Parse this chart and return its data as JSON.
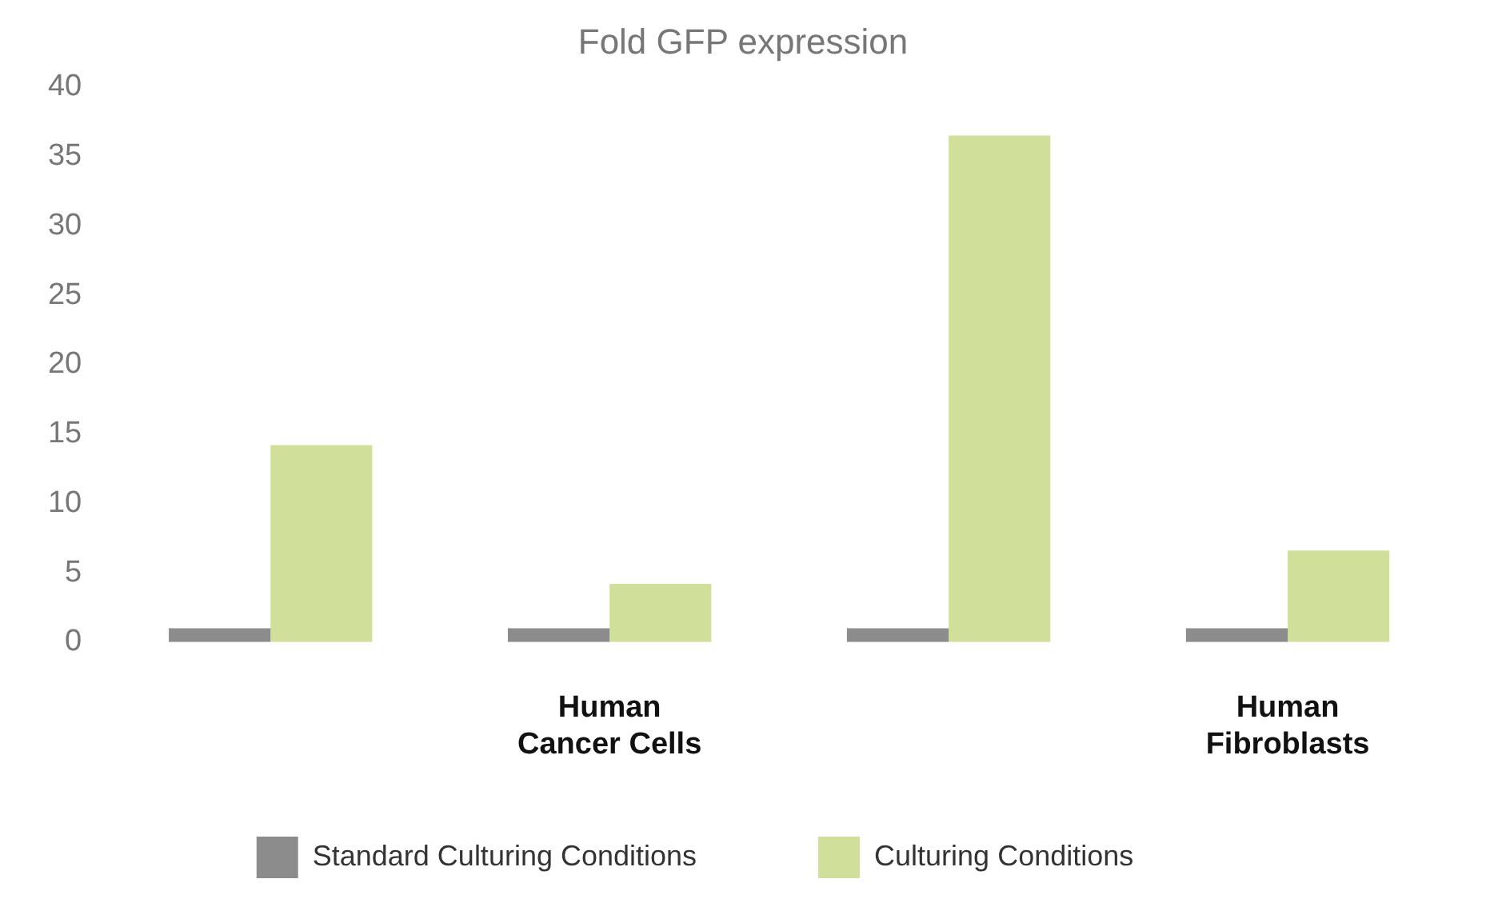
{
  "chart_data": {
    "type": "bar",
    "title": "Fold GFP expression",
    "categories": [
      null,
      "Human Cancer Cells",
      null,
      "Human Fibroblasts"
    ],
    "series": [
      {
        "name": "Standard Culturing Conditions",
        "color": "#8c8c8c",
        "values": [
          1,
          1,
          1,
          1
        ]
      },
      {
        "name": "Culturing Conditions",
        "color": "#d0e09a",
        "values": [
          14.2,
          4.2,
          36.5,
          6.6
        ]
      }
    ],
    "ylim": [
      0,
      40
    ],
    "yticks": [
      0,
      5,
      10,
      15,
      20,
      25,
      30,
      35,
      40
    ],
    "grid": false,
    "legend": "bottom"
  }
}
